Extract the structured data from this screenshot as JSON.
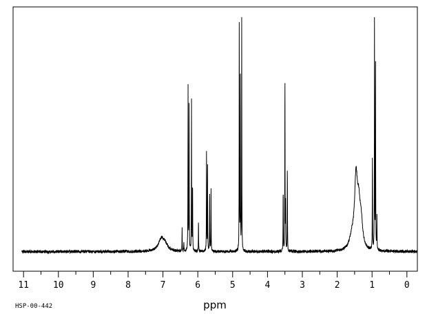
{
  "chart_data": {
    "type": "line",
    "title": "",
    "xlabel": "ppm",
    "ylabel": "",
    "xlim": [
      11.3,
      -0.3
    ],
    "x_reversed": true,
    "ylim": [
      -0.08,
      1.0
    ],
    "grid": false,
    "legend": "none",
    "baseline_noise": 0.006,
    "x_ticks": [
      {
        "value": 11,
        "label": "11"
      },
      {
        "value": 10,
        "label": "10"
      },
      {
        "value": 9,
        "label": "9"
      },
      {
        "value": 8,
        "label": "8"
      },
      {
        "value": 7,
        "label": "7"
      },
      {
        "value": 6,
        "label": "6"
      },
      {
        "value": 5,
        "label": "5"
      },
      {
        "value": 4,
        "label": "4"
      },
      {
        "value": 3,
        "label": "3"
      },
      {
        "value": 2,
        "label": "2"
      },
      {
        "value": 1,
        "label": "1"
      },
      {
        "value": 0,
        "label": "0"
      }
    ],
    "peaks": [
      {
        "shift": 7.05,
        "height": 0.045,
        "width": 0.1
      },
      {
        "shift": 6.95,
        "height": 0.025,
        "width": 0.1
      },
      {
        "shift": 6.45,
        "height": 0.1,
        "width": 0.004
      },
      {
        "shift": 6.4,
        "height": 0.04,
        "width": 0.004
      },
      {
        "shift": 6.28,
        "height": 0.68,
        "width": 0.004
      },
      {
        "shift": 6.25,
        "height": 0.64,
        "width": 0.004
      },
      {
        "shift": 6.18,
        "height": 0.62,
        "width": 0.004
      },
      {
        "shift": 6.15,
        "height": 0.29,
        "width": 0.004
      },
      {
        "shift": 5.98,
        "height": 0.13,
        "width": 0.004
      },
      {
        "shift": 5.75,
        "height": 0.43,
        "width": 0.004
      },
      {
        "shift": 5.72,
        "height": 0.37,
        "width": 0.004
      },
      {
        "shift": 5.66,
        "height": 0.25,
        "width": 0.004
      },
      {
        "shift": 5.62,
        "height": 0.25,
        "width": 0.004
      },
      {
        "shift": 4.81,
        "height": 0.98,
        "width": 0.004
      },
      {
        "shift": 4.78,
        "height": 0.74,
        "width": 0.004
      },
      {
        "shift": 4.74,
        "height": 0.95,
        "width": 0.004
      },
      {
        "shift": 3.55,
        "height": 0.26,
        "width": 0.004
      },
      {
        "shift": 3.5,
        "height": 0.75,
        "width": 0.004
      },
      {
        "shift": 3.48,
        "height": 0.19,
        "width": 0.004
      },
      {
        "shift": 3.43,
        "height": 0.36,
        "width": 0.004
      },
      {
        "shift": 1.46,
        "height": 0.28,
        "width": 0.05
      },
      {
        "shift": 1.38,
        "height": 0.15,
        "width": 0.05
      },
      {
        "shift": 1.31,
        "height": 0.09,
        "width": 0.05
      },
      {
        "shift": 1.58,
        "height": 0.05,
        "width": 0.08
      },
      {
        "shift": 0.99,
        "height": 0.4,
        "width": 0.004
      },
      {
        "shift": 0.93,
        "height": 0.97,
        "width": 0.004
      },
      {
        "shift": 0.9,
        "height": 0.82,
        "width": 0.004
      },
      {
        "shift": 0.86,
        "height": 0.14,
        "width": 0.004
      }
    ]
  },
  "footer": {
    "code": "HSP-00-442"
  }
}
